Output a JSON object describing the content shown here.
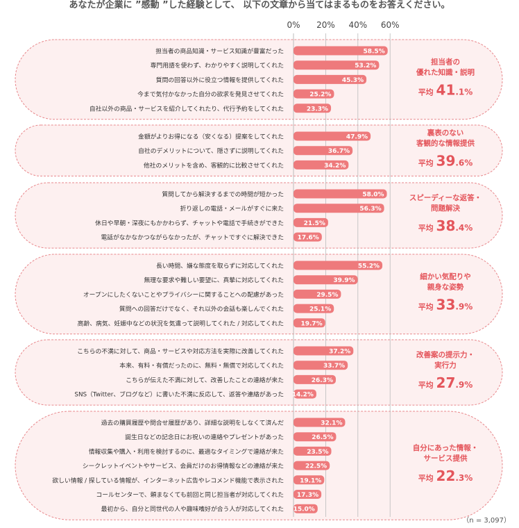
{
  "title": "あなたが企業に ”感動 ”した経験として、 以下の文章から当てはまるものをお答えください。",
  "note": "（n = 3,097）",
  "colors": {
    "bar": "#ee7a7c",
    "panel_fill": "#fdf0f0",
    "panel_stroke": "#e8878b",
    "group_text": "#e4555b"
  },
  "chart_data": {
    "type": "bar",
    "orientation": "horizontal",
    "x_ticks": [
      "0%",
      "20%",
      "40%",
      "60%"
    ],
    "xlim": [
      0,
      60
    ],
    "grid": true,
    "groups": [
      {
        "label": "担当者の\n優れた知識・説明",
        "avg_label": "平均",
        "avg_int": "41",
        "avg_dec": ".1%",
        "items": [
          {
            "label": "担当者の商品知識・サービス知識が豊富だった",
            "value": 58.5,
            "value_label": "58.5%"
          },
          {
            "label": "専門用語を使わず、わかりやすく説明してくれた",
            "value": 53.2,
            "value_label": "53.2%"
          },
          {
            "label": "質問の回答以外に役立つ情報を提供してくれた",
            "value": 45.3,
            "value_label": "45.3%"
          },
          {
            "label": "今まで気付かなかった自分の欲求を発見させてくれた",
            "value": 25.2,
            "value_label": "25.2%"
          },
          {
            "label": "自社以外の商品・サービスを紹介してくれたり、代行予約をしてくれた",
            "value": 23.3,
            "value_label": "23.3%"
          }
        ]
      },
      {
        "label": "裏表のない\n客観的な情報提供",
        "avg_label": "平均",
        "avg_int": "39",
        "avg_dec": ".6%",
        "items": [
          {
            "label": "金額がよりお得になる（安くなる）提案をしてくれた",
            "value": 47.9,
            "value_label": "47.9%"
          },
          {
            "label": "自社のデメリットについて、隠さずに説明してくれた",
            "value": 36.7,
            "value_label": "36.7%"
          },
          {
            "label": "他社のメリットを含め、客観的に比較させてくれた",
            "value": 34.2,
            "value_label": "34.2%"
          }
        ]
      },
      {
        "label": "スピーディーな返答・\n問題解決",
        "avg_label": "平均",
        "avg_int": "38",
        "avg_dec": ".4%",
        "items": [
          {
            "label": "質問してから解決するまでの時間が短かった",
            "value": 58.0,
            "value_label": "58.0%"
          },
          {
            "label": "折り返しの電話・メールがすぐに来た",
            "value": 56.3,
            "value_label": "56.3%"
          },
          {
            "label": "休日や早朝・深夜にもかかわらず、チャットや電話で手続きができた",
            "value": 21.5,
            "value_label": "21.5%"
          },
          {
            "label": "電話がなかなかつながらなかったが、チャットですぐに解決できた",
            "value": 17.6,
            "value_label": "17.6%"
          }
        ]
      },
      {
        "label": "細かい気配りや\n親身な姿勢",
        "avg_label": "平均",
        "avg_int": "33",
        "avg_dec": ".9%",
        "items": [
          {
            "label": "長い時間、嫌な態度を取らずに対応してくれた",
            "value": 55.2,
            "value_label": "55.2%"
          },
          {
            "label": "無理な要求や難しい要望に、真摯に対応してくれた",
            "value": 39.9,
            "value_label": "39.9%"
          },
          {
            "label": "オープンにしたくないことやプライバシーに関することへの配慮があった",
            "value": 29.5,
            "value_label": "29.5%"
          },
          {
            "label": "質問への回答だけでなく、それ以外の会話も楽しんでくれた",
            "value": 25.1,
            "value_label": "25.1%"
          },
          {
            "label": "高齢、病気、妊娠中などの状況を気遣って説明してくれた / 対応してくれた",
            "value": 19.7,
            "value_label": "19.7%"
          }
        ]
      },
      {
        "label": "改善案の提示力・\n実行力",
        "avg_label": "平均",
        "avg_int": "27",
        "avg_dec": ".9%",
        "items": [
          {
            "label": "こちらの不満に対して、商品・サービスや対応方法を実際に改善してくれた",
            "value": 37.2,
            "value_label": "37.2%"
          },
          {
            "label": "本来、有料・有償だったのに、無料・無償で対応してくれた",
            "value": 33.7,
            "value_label": "33.7%"
          },
          {
            "label": "こちらが伝えた不満に対して、改善したことの連絡が来た",
            "value": 26.3,
            "value_label": "26.3%"
          },
          {
            "label": "SNS（Twitter、ブログなど）に書いた不満に反応して、返答や連絡があった",
            "value": 14.2,
            "value_label": "14.2%"
          }
        ]
      },
      {
        "label": "自分にあった情報・\nサービス提供",
        "avg_label": "平均",
        "avg_int": "22",
        "avg_dec": ".3%",
        "items": [
          {
            "label": "過去の購買履歴や問合せ履歴があり、詳細な説明をしなくて済んだ",
            "value": 32.1,
            "value_label": "32.1%"
          },
          {
            "label": "誕生日などの記念日にお祝いの連絡やプレゼントがあった",
            "value": 26.5,
            "value_label": "26.5%"
          },
          {
            "label": "情報収集や購入・利用を検討するのに、最適なタイミングで連絡が来た",
            "value": 23.5,
            "value_label": "23.5%"
          },
          {
            "label": "シークレットイベントやサービス、会員だけのお得情報などの連絡が来た",
            "value": 22.5,
            "value_label": "22.5%"
          },
          {
            "label": "欲しい情報 / 探している情報が、インターネット広告やレコメンド機能で表示された",
            "value": 19.1,
            "value_label": "19.1%"
          },
          {
            "label": "コールセンターで、頼まなくても前回と同じ担当者が対応してくれた",
            "value": 17.3,
            "value_label": "17.3%"
          },
          {
            "label": "最初から、自分と同世代の人や趣味嗜好が合う人が対応してくれた",
            "value": 15.0,
            "value_label": "15.0%"
          }
        ]
      }
    ]
  }
}
